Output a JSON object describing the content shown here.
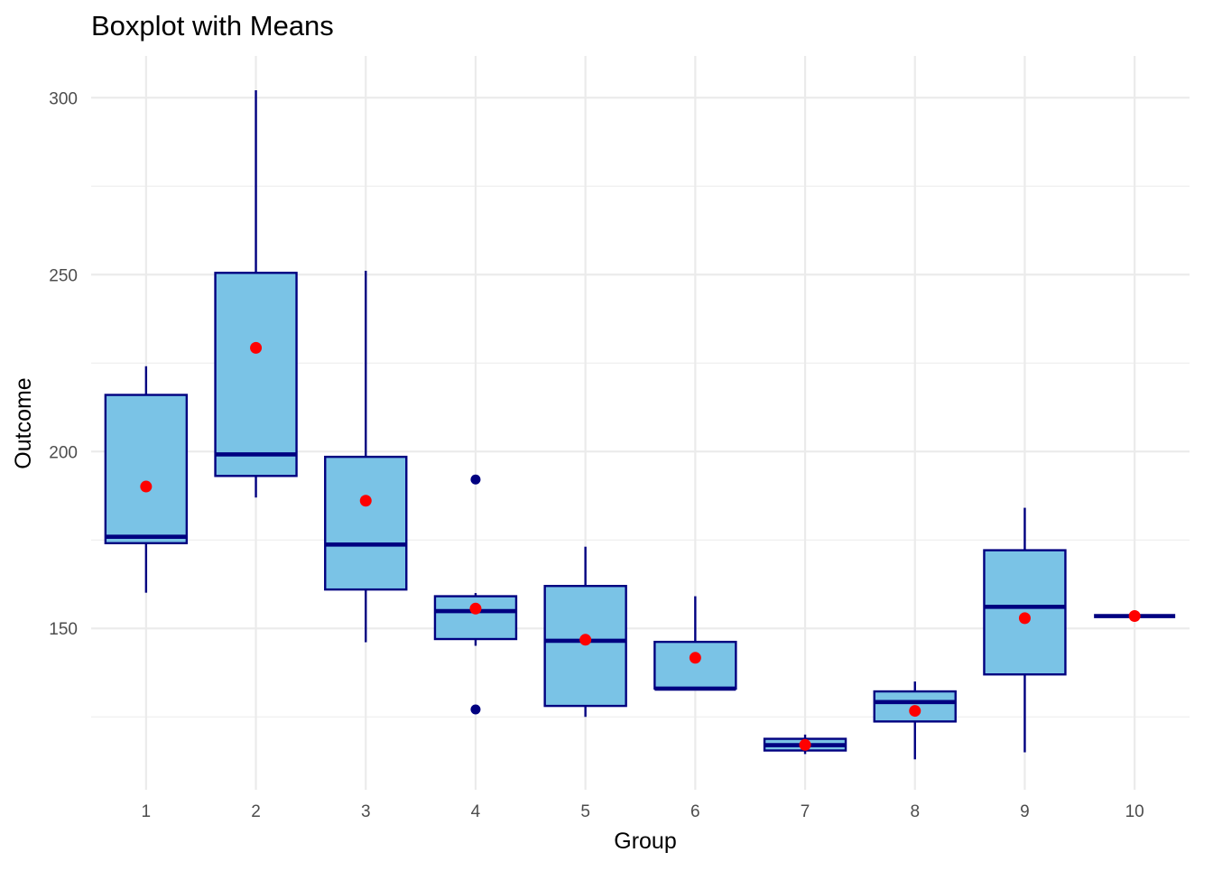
{
  "chart_data": {
    "type": "boxplot",
    "title": "Boxplot with Means",
    "xlabel": "Group",
    "ylabel": "Outcome",
    "ylim": [
      104.4,
      311.8
    ],
    "y_ticks": [
      150,
      200,
      250,
      300
    ],
    "grid": true,
    "legend": "none",
    "colors": {
      "box_fill": "#7ac3e6",
      "box_outline": "#000080",
      "outlier": "#000080",
      "mean": "#ff0000",
      "grid": "#ebebeb"
    },
    "categories": [
      "1",
      "2",
      "3",
      "4",
      "5",
      "6",
      "7",
      "8",
      "9",
      "10"
    ],
    "boxes": [
      {
        "group": "1",
        "whisker_low": 160.1,
        "q1": 174.1,
        "median": 175.9,
        "q3": 216.0,
        "whisker_high": 224.1,
        "mean": 190.1,
        "outliers": []
      },
      {
        "group": "2",
        "whisker_low": 187.0,
        "q1": 193.1,
        "median": 199.2,
        "q3": 250.5,
        "whisker_high": 302.1,
        "mean": 229.3,
        "outliers": []
      },
      {
        "group": "3",
        "whisker_low": 146.1,
        "q1": 161.0,
        "median": 173.7,
        "q3": 198.5,
        "whisker_high": 251.1,
        "mean": 186.1,
        "outliers": []
      },
      {
        "group": "4",
        "whisker_low": 145.1,
        "q1": 147.0,
        "median": 154.9,
        "q3": 159.1,
        "whisker_high": 160.0,
        "mean": 155.6,
        "outliers": [
          192.1,
          127.1
        ]
      },
      {
        "group": "5",
        "whisker_low": 125.0,
        "q1": 128.1,
        "median": 146.5,
        "q3": 162.0,
        "whisker_high": 173.1,
        "mean": 146.8,
        "outliers": []
      },
      {
        "group": "6",
        "whisker_low": 133.0,
        "q1": 133.0,
        "median": 133.0,
        "q3": 146.2,
        "whisker_high": 159.1,
        "mean": 141.7,
        "outliers": []
      },
      {
        "group": "7",
        "whisker_low": 114.5,
        "q1": 115.5,
        "median": 117.0,
        "q3": 118.8,
        "whisker_high": 120.0,
        "mean": 117.1,
        "outliers": []
      },
      {
        "group": "8",
        "whisker_low": 113.0,
        "q1": 123.7,
        "median": 129.2,
        "q3": 132.2,
        "whisker_high": 135.0,
        "mean": 126.7,
        "outliers": []
      },
      {
        "group": "9",
        "whisker_low": 115.0,
        "q1": 137.0,
        "median": 156.1,
        "q3": 172.1,
        "whisker_high": 184.1,
        "mean": 152.9,
        "outliers": []
      },
      {
        "group": "10",
        "whisker_low": 153.5,
        "q1": 153.5,
        "median": 153.5,
        "q3": 153.5,
        "whisker_high": 153.5,
        "mean": 153.5,
        "outliers": []
      }
    ]
  }
}
